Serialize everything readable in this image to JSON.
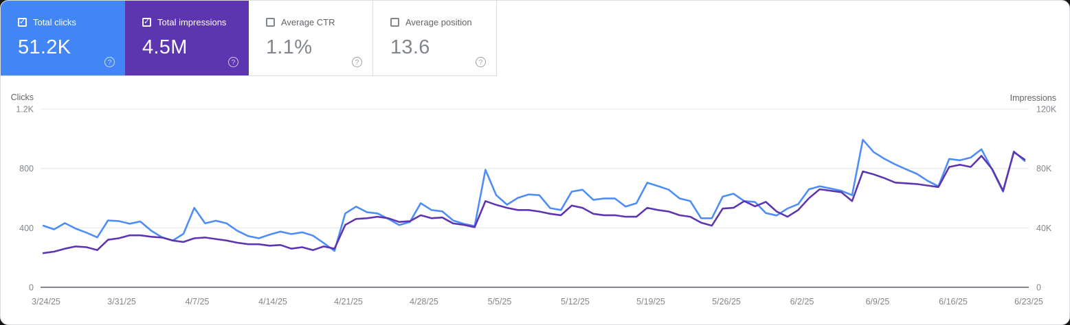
{
  "cards": [
    {
      "label": "Total clicks",
      "value": "51.2K",
      "checked": true,
      "color": "#4285f4"
    },
    {
      "label": "Total impressions",
      "value": "4.5M",
      "checked": true,
      "color": "#5e35b1"
    },
    {
      "label": "Average CTR",
      "value": "1.1%",
      "checked": false,
      "color": "#ffffff"
    },
    {
      "label": "Average position",
      "value": "13.6",
      "checked": false,
      "color": "#ffffff"
    }
  ],
  "icons": {
    "help": "?",
    "check": "✓"
  },
  "chart_data": {
    "type": "line",
    "x_labels": [
      "3/24/25",
      "3/31/25",
      "4/7/25",
      "4/14/25",
      "4/21/25",
      "4/28/25",
      "5/5/25",
      "5/12/25",
      "5/19/25",
      "5/26/25",
      "6/2/25",
      "6/9/25",
      "6/16/25",
      "6/23/25"
    ],
    "left_axis": {
      "title": "Clicks",
      "ticks": [
        "1.2K",
        "800",
        "400",
        "0"
      ],
      "max": 1200
    },
    "right_axis": {
      "title": "Impressions",
      "ticks": [
        "120K",
        "80K",
        "40K",
        "0"
      ],
      "max": 120000
    },
    "grid": "horizontal",
    "legend_position": "none",
    "series": [
      {
        "name": "Total clicks",
        "axis": "left",
        "color": "#4e8df7",
        "values": [
          415,
          390,
          432,
          395,
          368,
          336,
          450,
          446,
          428,
          443,
          381,
          337,
          315,
          360,
          535,
          430,
          448,
          430,
          380,
          345,
          330,
          355,
          375,
          358,
          370,
          348,
          298,
          245,
          497,
          543,
          506,
          497,
          460,
          419,
          440,
          566,
          520,
          511,
          450,
          427,
          412,
          791,
          620,
          556,
          602,
          625,
          620,
          533,
          520,
          644,
          657,
          589,
          598,
          598,
          543,
          566,
          704,
          681,
          657,
          598,
          580,
          465,
          465,
          610,
          630,
          580,
          574,
          500,
          483,
          530,
          560,
          660,
          680,
          665,
          650,
          620,
          993,
          910,
          865,
          827,
          795,
          764,
          717,
          680,
          864,
          855,
          873,
          929,
          790,
          644,
          915,
          850
        ]
      },
      {
        "name": "Total impressions",
        "axis": "right",
        "color": "#5e35b1",
        "values": [
          23000,
          24000,
          26000,
          27500,
          27000,
          25000,
          32000,
          33000,
          35000,
          35000,
          34000,
          33500,
          31500,
          30500,
          33000,
          33500,
          32500,
          31500,
          30000,
          29000,
          29000,
          28000,
          28500,
          26000,
          27000,
          25000,
          27500,
          26000,
          42000,
          46000,
          46500,
          47500,
          46500,
          44000,
          44500,
          48500,
          46500,
          47000,
          43000,
          42000,
          40500,
          58000,
          55500,
          53500,
          52000,
          52000,
          51000,
          49500,
          48500,
          55000,
          53500,
          49500,
          48500,
          48500,
          47500,
          47500,
          53500,
          52000,
          51000,
          48500,
          47500,
          43500,
          41500,
          53000,
          53500,
          58000,
          54500,
          57500,
          51000,
          47500,
          52000,
          60000,
          66000,
          65000,
          64000,
          58000,
          78000,
          76000,
          73500,
          70500,
          70000,
          69500,
          68500,
          67500,
          81000,
          82500,
          81000,
          88500,
          79500,
          65000,
          91000,
          86000
        ]
      }
    ]
  },
  "colors": {
    "grid_line": "#e9eaed",
    "axis_line": "#80868b",
    "tick_label": "#80868b",
    "axis_title": "#5f6368",
    "card_divider": "#dadce0"
  }
}
